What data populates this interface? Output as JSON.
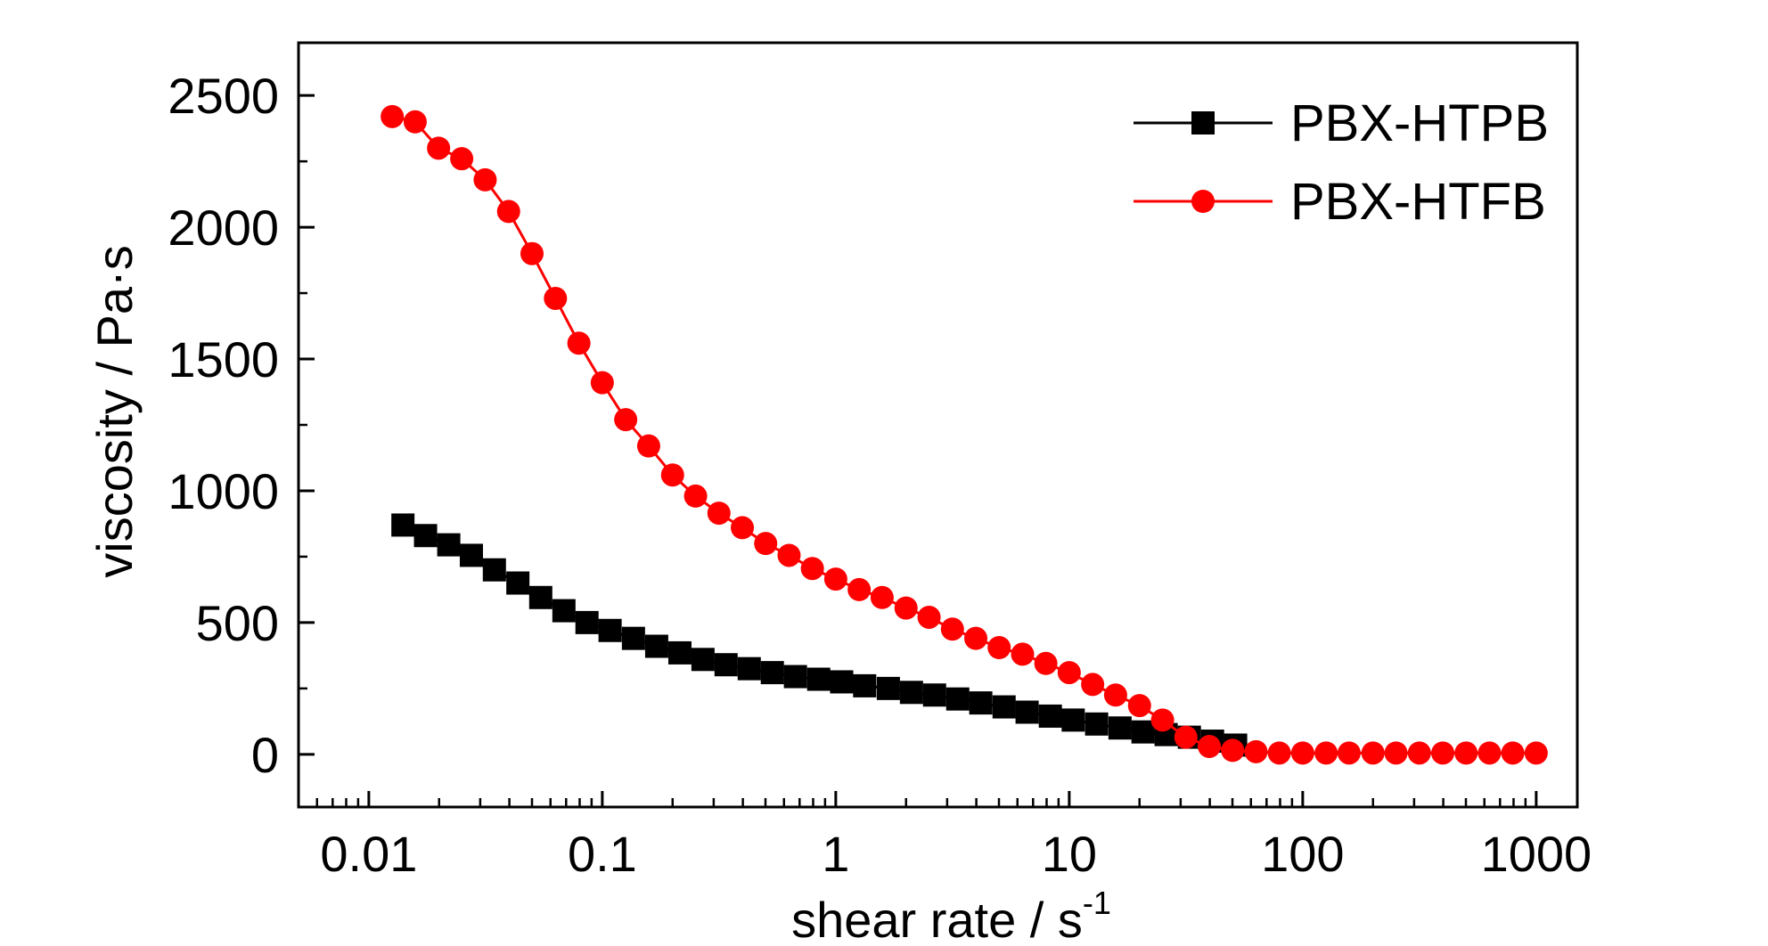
{
  "chart_data": {
    "type": "line",
    "title": "",
    "xlabel": "shear rate / s",
    "xlabel_superscript": "-1",
    "ylabel": "viscosity / Pa·s",
    "x_scale": "log",
    "xlim": [
      0.005,
      1500
    ],
    "ylim": [
      -200,
      2700
    ],
    "x_ticks": [
      {
        "value": 0.01,
        "label": "0.01"
      },
      {
        "value": 0.1,
        "label": "0.1"
      },
      {
        "value": 1,
        "label": "1"
      },
      {
        "value": 10,
        "label": "10"
      },
      {
        "value": 100,
        "label": "100"
      },
      {
        "value": 1000,
        "label": "1000"
      }
    ],
    "y_ticks": [
      {
        "value": 0,
        "label": "0"
      },
      {
        "value": 500,
        "label": "500"
      },
      {
        "value": 1000,
        "label": "1000"
      },
      {
        "value": 1500,
        "label": "1500"
      },
      {
        "value": 2000,
        "label": "2000"
      },
      {
        "value": 2500,
        "label": "2500"
      }
    ],
    "grid": false,
    "legend_position": "top-right",
    "series": [
      {
        "name": "PBX-HTPB",
        "color": "#000000",
        "marker": "square",
        "x": [
          0.014,
          0.0175,
          0.022,
          0.0275,
          0.0345,
          0.0435,
          0.0545,
          0.0685,
          0.086,
          0.108,
          0.136,
          0.171,
          0.215,
          0.27,
          0.339,
          0.426,
          0.535,
          0.672,
          0.845,
          1.06,
          1.33,
          1.68,
          2.11,
          2.65,
          3.33,
          4.18,
          5.26,
          6.6,
          8.3,
          10.4,
          13.1,
          16.5,
          20.7,
          26.0,
          32.7,
          41.1,
          51.6
        ],
        "values": [
          870,
          830,
          795,
          755,
          700,
          650,
          595,
          545,
          500,
          470,
          440,
          410,
          385,
          360,
          340,
          325,
          310,
          295,
          285,
          275,
          260,
          250,
          235,
          225,
          210,
          195,
          180,
          160,
          145,
          130,
          115,
          100,
          85,
          75,
          65,
          50,
          35
        ]
      },
      {
        "name": "PBX-HTFB",
        "color": "#ff0000",
        "marker": "circle",
        "x": [
          0.0126,
          0.0158,
          0.0199,
          0.025,
          0.0315,
          0.0397,
          0.05,
          0.063,
          0.0794,
          0.1,
          0.126,
          0.158,
          0.2,
          0.251,
          0.316,
          0.398,
          0.501,
          0.631,
          0.794,
          1.0,
          1.26,
          1.58,
          2.0,
          2.51,
          3.16,
          3.98,
          5.01,
          6.31,
          7.94,
          10.0,
          12.6,
          15.8,
          20.0,
          25.1,
          31.6,
          39.8,
          50.1,
          63.1,
          79.4,
          100,
          126,
          158,
          200,
          251,
          316,
          398,
          501,
          631,
          794,
          1000
        ],
        "values": [
          2420,
          2400,
          2300,
          2260,
          2180,
          2060,
          1900,
          1730,
          1560,
          1410,
          1270,
          1170,
          1060,
          980,
          915,
          860,
          800,
          755,
          705,
          665,
          625,
          595,
          555,
          520,
          475,
          440,
          405,
          380,
          345,
          310,
          265,
          225,
          185,
          130,
          65,
          30,
          15,
          10,
          5,
          5,
          5,
          5,
          5,
          5,
          5,
          5,
          5,
          5,
          5,
          5
        ]
      }
    ]
  }
}
